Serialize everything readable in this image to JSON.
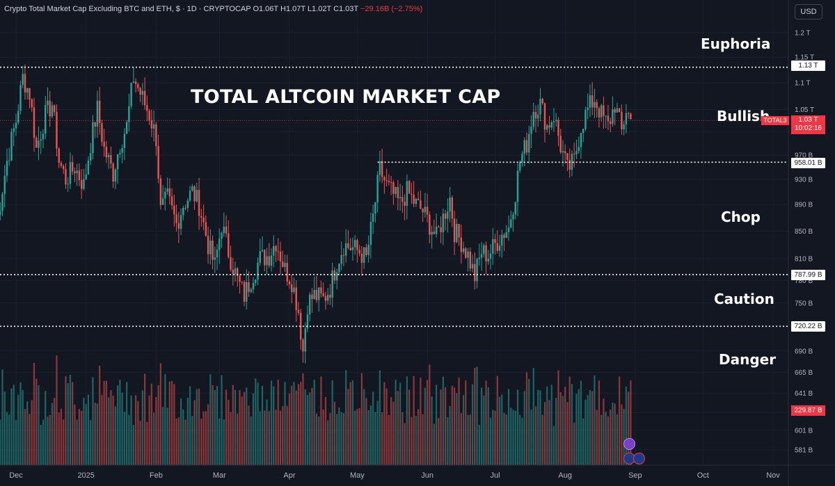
{
  "header": {
    "symbol": "Crypto Total Market Cap Excluding BTC and ETH, $ · 1D · CRYPTOCAP",
    "open": "O1.06T",
    "high": "H1.07T",
    "low": "L1.02T",
    "close": "C1.03T",
    "change": "−29.16B (−2.75%)"
  },
  "currency_button": "USD",
  "overlay_title": "TOTAL ALTCOIN MARKET CAP",
  "zones": [
    {
      "label": "Euphoria"
    },
    {
      "label": "Bullish"
    },
    {
      "label": "Chop"
    },
    {
      "label": "Caution"
    },
    {
      "label": "Danger"
    }
  ],
  "current": {
    "ticker": "TOTAL3",
    "price": "1.03 T",
    "countdown": "10:02:16"
  },
  "levels": [
    "1.13 T",
    "958.01 B",
    "787.99 B",
    "720.22 B"
  ],
  "volume_label": "229.87 B",
  "colors": {
    "background": "#131722",
    "up": "#26a69a",
    "down": "#ef5350",
    "text": "#d1d4dc",
    "level_line": "#ffffff"
  },
  "chart_data": {
    "type": "candlestick",
    "title": "Crypto Total Market Cap Excluding BTC and ETH",
    "y_scale": "log",
    "y_ticks": [
      "1.2 T",
      "1.15 T",
      "1.1 T",
      "1.05 T",
      "1.01 T",
      "970 B",
      "930 B",
      "890 B",
      "850 B",
      "810 B",
      "780 B",
      "750 B",
      "720 B",
      "690 B",
      "665 B",
      "641 B",
      "620 B",
      "601 B",
      "581 B"
    ],
    "y_tick_values": [
      1200,
      1150,
      1100,
      1050,
      1010,
      970,
      930,
      890,
      850,
      810,
      780,
      750,
      720,
      690,
      665,
      641,
      620,
      601,
      581
    ],
    "x_ticks": [
      "Dec",
      "2025",
      "Feb",
      "Mar",
      "Apr",
      "May",
      "Jun",
      "Jul",
      "Aug",
      "Sep",
      "Oct",
      "Nov"
    ],
    "x_tick_dates": [
      "2024-12-01",
      "2025-01-01",
      "2025-02-01",
      "2025-03-01",
      "2025-04-01",
      "2025-05-01",
      "2025-06-01",
      "2025-07-01",
      "2025-08-01",
      "2025-09-01",
      "2025-10-01",
      "2025-11-01"
    ],
    "horizontal_levels": [
      1130,
      958.01,
      787.99,
      720.22
    ],
    "dotted_level_end": {
      "value": 958.01,
      "start": "2025-05-10"
    },
    "current_price": 1030,
    "closes_by_date": [
      [
        "2024-11-22",
        850
      ],
      [
        "2024-11-27",
        960
      ],
      [
        "2024-12-01",
        1030
      ],
      [
        "2024-12-04",
        1110
      ],
      [
        "2024-12-07",
        1080
      ],
      [
        "2024-12-10",
        980
      ],
      [
        "2024-12-14",
        1040
      ],
      [
        "2024-12-17",
        1060
      ],
      [
        "2024-12-20",
        960
      ],
      [
        "2024-12-23",
        930
      ],
      [
        "2024-12-27",
        950
      ],
      [
        "2024-12-31",
        920
      ],
      [
        "2025-01-03",
        990
      ],
      [
        "2025-01-06",
        1050
      ],
      [
        "2025-01-09",
        980
      ],
      [
        "2025-01-13",
        940
      ],
      [
        "2025-01-16",
        990
      ],
      [
        "2025-01-19",
        1020
      ],
      [
        "2025-01-22",
        1110
      ],
      [
        "2025-01-25",
        1080
      ],
      [
        "2025-01-29",
        1040
      ],
      [
        "2025-02-01",
        1000
      ],
      [
        "2025-02-03",
        880
      ],
      [
        "2025-02-06",
        900
      ],
      [
        "2025-02-10",
        860
      ],
      [
        "2025-02-13",
        890
      ],
      [
        "2025-02-17",
        910
      ],
      [
        "2025-02-20",
        890
      ],
      [
        "2025-02-24",
        830
      ],
      [
        "2025-02-27",
        800
      ],
      [
        "2025-03-02",
        860
      ],
      [
        "2025-03-05",
        820
      ],
      [
        "2025-03-09",
        780
      ],
      [
        "2025-03-12",
        760
      ],
      [
        "2025-03-16",
        790
      ],
      [
        "2025-03-19",
        810
      ],
      [
        "2025-03-23",
        815
      ],
      [
        "2025-03-26",
        835
      ],
      [
        "2025-03-30",
        795
      ],
      [
        "2025-04-02",
        780
      ],
      [
        "2025-04-05",
        740
      ],
      [
        "2025-04-07",
        690
      ],
      [
        "2025-04-09",
        750
      ],
      [
        "2025-04-12",
        760
      ],
      [
        "2025-04-16",
        755
      ],
      [
        "2025-04-19",
        770
      ],
      [
        "2025-04-22",
        805
      ],
      [
        "2025-04-25",
        830
      ],
      [
        "2025-04-29",
        825
      ],
      [
        "2025-05-02",
        820
      ],
      [
        "2025-05-05",
        810
      ],
      [
        "2025-05-08",
        870
      ],
      [
        "2025-05-11",
        945
      ],
      [
        "2025-05-14",
        920
      ],
      [
        "2025-05-17",
        905
      ],
      [
        "2025-05-20",
        890
      ],
      [
        "2025-05-23",
        910
      ],
      [
        "2025-05-27",
        890
      ],
      [
        "2025-05-30",
        880
      ],
      [
        "2025-06-02",
        860
      ],
      [
        "2025-06-05",
        840
      ],
      [
        "2025-06-08",
        870
      ],
      [
        "2025-06-11",
        900
      ],
      [
        "2025-06-13",
        850
      ],
      [
        "2025-06-16",
        835
      ],
      [
        "2025-06-19",
        815
      ],
      [
        "2025-06-22",
        785
      ],
      [
        "2025-06-25",
        820
      ],
      [
        "2025-06-28",
        815
      ],
      [
        "2025-07-01",
        830
      ],
      [
        "2025-07-04",
        845
      ],
      [
        "2025-07-07",
        855
      ],
      [
        "2025-07-10",
        910
      ],
      [
        "2025-07-12",
        960
      ],
      [
        "2025-07-15",
        990
      ],
      [
        "2025-07-18",
        1050
      ],
      [
        "2025-07-21",
        1060
      ],
      [
        "2025-07-24",
        1020
      ],
      [
        "2025-07-27",
        1040
      ],
      [
        "2025-07-30",
        985
      ],
      [
        "2025-08-02",
        945
      ],
      [
        "2025-08-05",
        960
      ],
      [
        "2025-08-08",
        1020
      ],
      [
        "2025-08-11",
        1050
      ],
      [
        "2025-08-14",
        1070
      ],
      [
        "2025-08-17",
        1040
      ],
      [
        "2025-08-20",
        1020
      ],
      [
        "2025-08-23",
        1060
      ],
      [
        "2025-08-26",
        1010
      ],
      [
        "2025-08-28",
        1050
      ],
      [
        "2025-08-30",
        1030
      ]
    ]
  }
}
